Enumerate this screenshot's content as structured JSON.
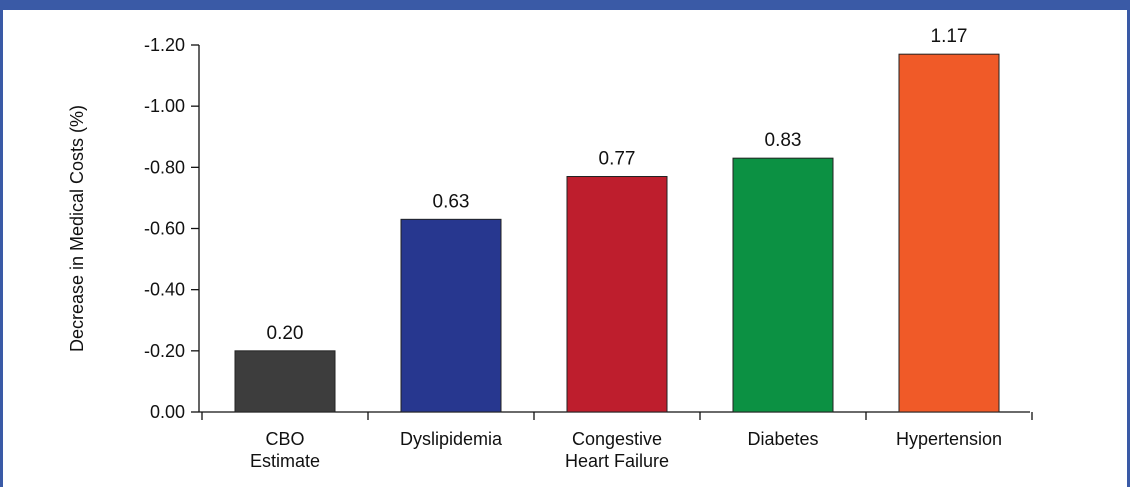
{
  "chart_data": {
    "type": "bar",
    "title": "",
    "xlabel": "",
    "ylabel": "Decrease in Medical Costs (%)",
    "categories": [
      [
        "CBO",
        "Estimate"
      ],
      [
        "Dyslipidemia"
      ],
      [
        "Congestive",
        "Heart Failure"
      ],
      [
        "Diabetes"
      ],
      [
        "Hypertension"
      ]
    ],
    "values": [
      0.2,
      0.63,
      0.77,
      0.83,
      1.17
    ],
    "value_labels": [
      "0.20",
      "0.63",
      "0.77",
      "0.83",
      "1.17"
    ],
    "colors": [
      "#3d3d3d",
      "#27378f",
      "#be1e2d",
      "#0c9143",
      "#f05a28"
    ],
    "ylim": [
      0,
      1.2
    ],
    "yticks": [
      0,
      0.2,
      0.4,
      0.6,
      0.8,
      1.0,
      1.2
    ],
    "ytick_labels": [
      "0.00",
      "-0.20",
      "-0.40",
      "-0.60",
      "-0.80",
      "-1.00",
      "-1.20"
    ],
    "grid": false,
    "frame_color": "#3a5aa6"
  }
}
